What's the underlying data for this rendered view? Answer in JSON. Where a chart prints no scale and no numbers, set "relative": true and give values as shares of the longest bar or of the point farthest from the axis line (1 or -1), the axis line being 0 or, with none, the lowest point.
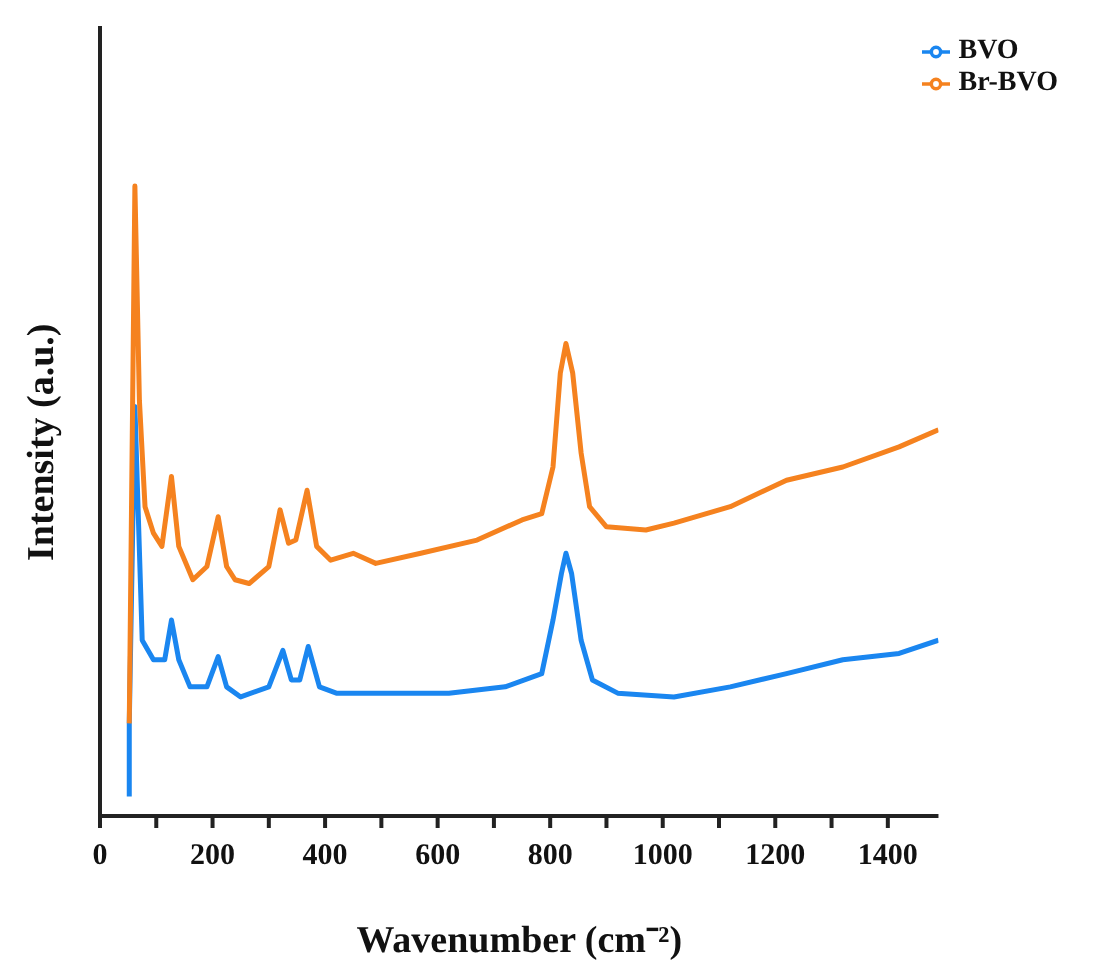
{
  "chart_data": {
    "type": "line",
    "relative": true,
    "xlabel": "Wavenumber (cm⁻²)",
    "ylabel": "Intensity (a.u.)",
    "xlim": [
      0,
      1490
    ],
    "xticks": [
      0,
      {
        "value": 100,
        "label": null
      },
      200,
      {
        "value": 300,
        "label": null
      },
      400,
      {
        "value": 500,
        "label": null
      },
      600,
      {
        "value": 700,
        "label": null
      },
      800,
      {
        "value": 900,
        "label": null
      },
      1000,
      {
        "value": 1100,
        "label": null
      },
      1200,
      {
        "value": 1300,
        "label": null
      },
      1400
    ],
    "legend": "top right",
    "grid": false,
    "marker": "none",
    "line_style": "solid",
    "series": [
      {
        "name": "BVO",
        "color": "#1a86f0",
        "x": [
          52,
          52,
          62,
          75,
          95,
          115,
          127,
          140,
          160,
          190,
          210,
          225,
          250,
          300,
          325,
          340,
          355,
          370,
          390,
          420,
          520,
          620,
          720,
          785,
          805,
          820,
          828,
          838,
          855,
          875,
          920,
          1020,
          1120,
          1220,
          1320,
          1420,
          1490
        ],
        "values": [
          0.031,
          0.147,
          0.65,
          0.279,
          0.248,
          0.248,
          0.311,
          0.248,
          0.205,
          0.205,
          0.253,
          0.205,
          0.189,
          0.205,
          0.263,
          0.216,
          0.216,
          0.269,
          0.205,
          0.195,
          0.195,
          0.195,
          0.205,
          0.226,
          0.311,
          0.385,
          0.417,
          0.385,
          0.279,
          0.216,
          0.195,
          0.189,
          0.205,
          0.226,
          0.248,
          0.258,
          0.279
        ]
      },
      {
        "name": "Br-BVO",
        "color": "#f5821f",
        "x": [
          52,
          62,
          70,
          80,
          95,
          110,
          127,
          140,
          165,
          190,
          210,
          225,
          240,
          265,
          300,
          320,
          335,
          348,
          368,
          385,
          410,
          450,
          490,
          570,
          670,
          750,
          785,
          805,
          818,
          828,
          840,
          855,
          870,
          900,
          970,
          1020,
          1120,
          1220,
          1320,
          1420,
          1490
        ],
        "values": [
          0.147,
          1.0,
          0.66,
          0.491,
          0.449,
          0.428,
          0.539,
          0.428,
          0.375,
          0.396,
          0.475,
          0.396,
          0.375,
          0.369,
          0.396,
          0.486,
          0.433,
          0.438,
          0.517,
          0.428,
          0.406,
          0.417,
          0.401,
          0.417,
          0.438,
          0.47,
          0.48,
          0.554,
          0.703,
          0.75,
          0.703,
          0.576,
          0.491,
          0.459,
          0.454,
          0.465,
          0.491,
          0.533,
          0.554,
          0.586,
          0.613
        ]
      }
    ]
  }
}
